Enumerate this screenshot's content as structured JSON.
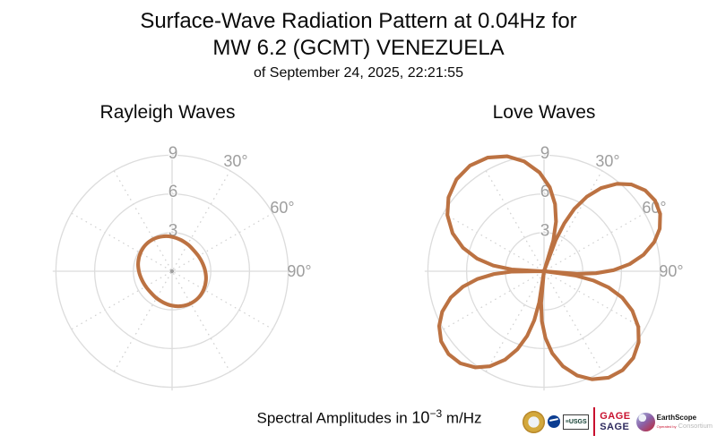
{
  "title": {
    "line1": "Surface-Wave Radiation Pattern at 0.04Hz for",
    "line2": "MW 6.2 (GCMT) VENEZUELA",
    "line3": "of September 24, 2025, 22:21:55"
  },
  "caption": {
    "prefix": "Spectral Amplitudes in ",
    "base": "10",
    "exponent": "−3",
    "suffix": " m/Hz"
  },
  "colors": {
    "curve": "#bc7242",
    "grid": "#dcdcdc",
    "grid_dotted": "#cfcfcf",
    "axis_labels": "#9e9e9e",
    "center_dot": "#a0a0a0"
  },
  "chart_data": [
    {
      "type": "line",
      "subtype": "polar-radiation-pattern",
      "title": "Rayleigh Waves",
      "r_ticks": [
        3,
        6,
        9
      ],
      "r_axis_max": 10.5,
      "angle_tick_degrees": [
        30,
        60,
        90
      ],
      "angle_tick_labels": [
        "30°",
        "60°",
        "90°"
      ],
      "units": "1e-3 m/Hz",
      "smooth": true,
      "samples_az_r": [
        [
          0,
          2.67
        ],
        [
          15,
          2.52
        ],
        [
          30,
          2.41
        ],
        [
          45,
          2.34
        ],
        [
          60,
          2.36
        ],
        [
          75,
          2.44
        ],
        [
          90,
          2.57
        ],
        [
          105,
          2.72
        ],
        [
          120,
          2.83
        ],
        [
          135,
          2.9
        ],
        [
          150,
          2.88
        ],
        [
          165,
          2.8
        ],
        [
          180,
          2.67
        ],
        [
          195,
          2.52
        ],
        [
          210,
          2.41
        ],
        [
          225,
          2.34
        ],
        [
          240,
          2.36
        ],
        [
          255,
          2.44
        ],
        [
          270,
          2.57
        ],
        [
          285,
          2.72
        ],
        [
          300,
          2.83
        ],
        [
          315,
          2.9
        ],
        [
          330,
          2.88
        ],
        [
          345,
          2.8
        ]
      ]
    },
    {
      "type": "line",
      "subtype": "polar-radiation-pattern",
      "title": "Love Waves",
      "r_ticks": [
        3,
        6,
        9
      ],
      "r_axis_max": 10.5,
      "angle_tick_degrees": [
        30,
        60,
        90
      ],
      "angle_tick_labels": [
        "30°",
        "60°",
        "90°"
      ],
      "units": "1e-3 m/Hz",
      "smooth": false,
      "samples_az_r": [
        [
          19,
          0.15
        ],
        [
          20.5,
          2.56
        ],
        [
          22.9,
          4.03
        ],
        [
          25.9,
          5.39
        ],
        [
          29.8,
          6.66
        ],
        [
          34.4,
          7.82
        ],
        [
          39.8,
          8.83
        ],
        [
          45.2,
          9.55
        ],
        [
          51.3,
          10.04
        ],
        [
          57.5,
          10.2
        ],
        [
          63.7,
          10.04
        ],
        [
          69.8,
          9.55
        ],
        [
          75.2,
          8.83
        ],
        [
          80.6,
          7.82
        ],
        [
          85.2,
          6.66
        ],
        [
          89.1,
          5.39
        ],
        [
          92.2,
          4.03
        ],
        [
          94.5,
          2.56
        ],
        [
          96,
          0.15
        ],
        [
          97.8,
          2.46
        ],
        [
          100.6,
          3.88
        ],
        [
          104.2,
          5.18
        ],
        [
          108.7,
          6.4
        ],
        [
          114.2,
          7.51
        ],
        [
          120.6,
          8.49
        ],
        [
          126.9,
          9.17
        ],
        [
          134.2,
          9.65
        ],
        [
          141.5,
          9.8
        ],
        [
          148.8,
          9.65
        ],
        [
          156.1,
          9.17
        ],
        [
          162.4,
          8.49
        ],
        [
          168.8,
          7.51
        ],
        [
          174.3,
          6.4
        ],
        [
          178.8,
          5.18
        ],
        [
          182.5,
          3.88
        ],
        [
          185.2,
          2.46
        ],
        [
          187,
          0.15
        ],
        [
          188.7,
          2.46
        ],
        [
          191.2,
          3.88
        ],
        [
          194.6,
          5.18
        ],
        [
          198.8,
          6.4
        ],
        [
          203.8,
          7.51
        ],
        [
          209.7,
          8.49
        ],
        [
          215.6,
          9.17
        ],
        [
          222.3,
          9.65
        ],
        [
          229,
          9.8
        ],
        [
          235.7,
          9.65
        ],
        [
          242.4,
          9.17
        ],
        [
          248.3,
          8.49
        ],
        [
          254.2,
          7.51
        ],
        [
          259.2,
          6.4
        ],
        [
          263.4,
          5.18
        ],
        [
          266.8,
          3.88
        ],
        [
          269.3,
          2.46
        ],
        [
          271,
          0.15
        ],
        [
          273.2,
          2.51
        ],
        [
          276.4,
          3.96
        ],
        [
          280.7,
          5.28
        ],
        [
          286.1,
          6.53
        ],
        [
          292.6,
          7.67
        ],
        [
          300.2,
          8.66
        ],
        [
          307.7,
          9.36
        ],
        [
          316.4,
          9.84
        ],
        [
          325,
          10.0
        ],
        [
          333.6,
          9.84
        ],
        [
          342.3,
          9.36
        ],
        [
          349.8,
          8.66
        ],
        [
          357.4,
          7.67
        ],
        [
          3.9,
          6.53
        ],
        [
          9.3,
          5.28
        ],
        [
          13.6,
          3.96
        ],
        [
          16.8,
          2.51
        ]
      ]
    }
  ],
  "logos": {
    "usgs": "≡USGS",
    "gage": "GAGE",
    "sage": "SAGE",
    "earthscope": "EarthScope",
    "operated_by": "Operated by",
    "consortium": "Consortium"
  }
}
